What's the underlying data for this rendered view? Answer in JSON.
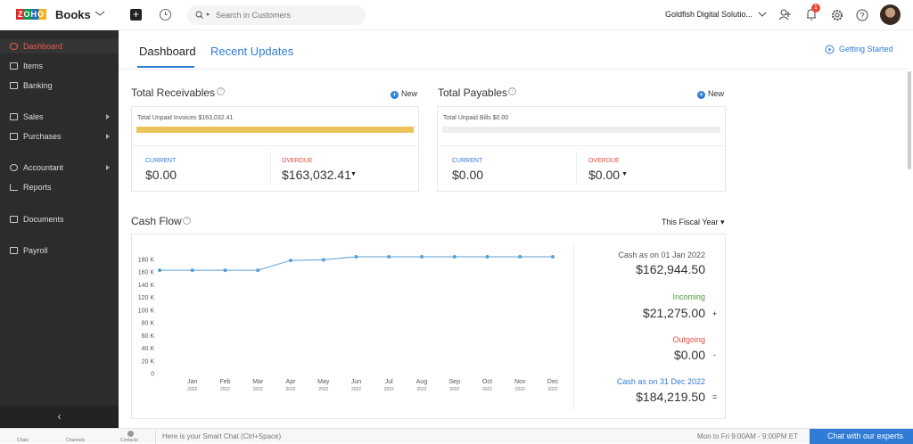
{
  "topbar": {
    "logo": "ZOHO",
    "brand": "Books",
    "search_placeholder": "Search in Customers",
    "organization": "Goldfish Digital Solutio...",
    "notification_count": 1
  },
  "sidebar": {
    "items": [
      "Dashboard",
      "Items",
      "Banking",
      "Sales",
      "Purchases",
      "Accountant",
      "Reports",
      "Documents",
      "Payroll"
    ]
  },
  "tabs": [
    "Dashboard",
    "Recent Updates"
  ],
  "getting_started": "Getting Started",
  "receivables": {
    "title": "Total Receivables",
    "new": "New",
    "unpaid": "Total Unpaid Invoices $163,032.41",
    "current_label": "CURRENT",
    "current": "$0.00",
    "overdue_label": "OVERDUE",
    "overdue": "$163,032.41"
  },
  "payables": {
    "title": "Total Payables",
    "new": "New",
    "unpaid": "Total Unpaid Bills $0.00",
    "current_label": "CURRENT",
    "current": "$0.00",
    "overdue_label": "OVERDUE",
    "overdue": "$0.00"
  },
  "cash_flow": {
    "title": "Cash Flow",
    "period": "This Fiscal Year",
    "chart_data": {
      "type": "line",
      "categories": [
        null,
        "Jan",
        "Feb",
        "Mar",
        "Apr",
        "May",
        "Jun",
        "Jul",
        "Aug",
        "Sep",
        "Oct",
        "Nov",
        "Dec"
      ],
      "years": [
        null,
        "2022",
        "2022",
        "2022",
        "2022",
        "2022",
        "2022",
        "2022",
        "2022",
        "2022",
        "2022",
        "2022",
        "2022"
      ],
      "series": [
        {
          "color": "#5a9fd4",
          "values": [
            162944.5,
            162944.5,
            162944.5,
            162944.5,
            178500,
            179500,
            184219.5,
            184219.5,
            184219.5,
            184219.5,
            184219.5,
            184219.5,
            184219.5
          ]
        }
      ],
      "ylim": [
        0,
        180000
      ],
      "yticks": [
        0,
        {
          "value": 20000,
          "label": "20 K"
        },
        {
          "value": 40000,
          "label": "40 K"
        },
        {
          "value": 60000,
          "label": "60 K"
        },
        {
          "value": 80000,
          "label": "80 K"
        },
        {
          "value": 100000,
          "label": "100 K"
        },
        {
          "value": 120000,
          "label": "120 K"
        },
        {
          "value": 140000,
          "label": "140 K"
        },
        {
          "value": 160000,
          "label": "160 K"
        },
        {
          "value": 180000,
          "label": "180 K"
        }
      ]
    },
    "summary": {
      "opening_label": "Cash as on 01 Jan 2022",
      "opening": "$162,944.50",
      "incoming_label": "Incoming",
      "incoming": "$21,275.00",
      "incoming_sign": "+",
      "outgoing_label": "Outgoing",
      "outgoing": "$0.00",
      "outgoing_sign": "-",
      "closing_label": "Cash as on 31 Dec 2022",
      "closing": "$184,219.50",
      "closing_sign": "="
    }
  },
  "bottombar": {
    "chats": "Chats",
    "channels": "Channels",
    "contacts": "Contacts",
    "smart_chat": "Here is your Smart Chat (Ctrl+Space)",
    "hours": "Mon to Fri 9:00AM - 9:00PM ET",
    "chat_button": "Chat with our experts"
  }
}
